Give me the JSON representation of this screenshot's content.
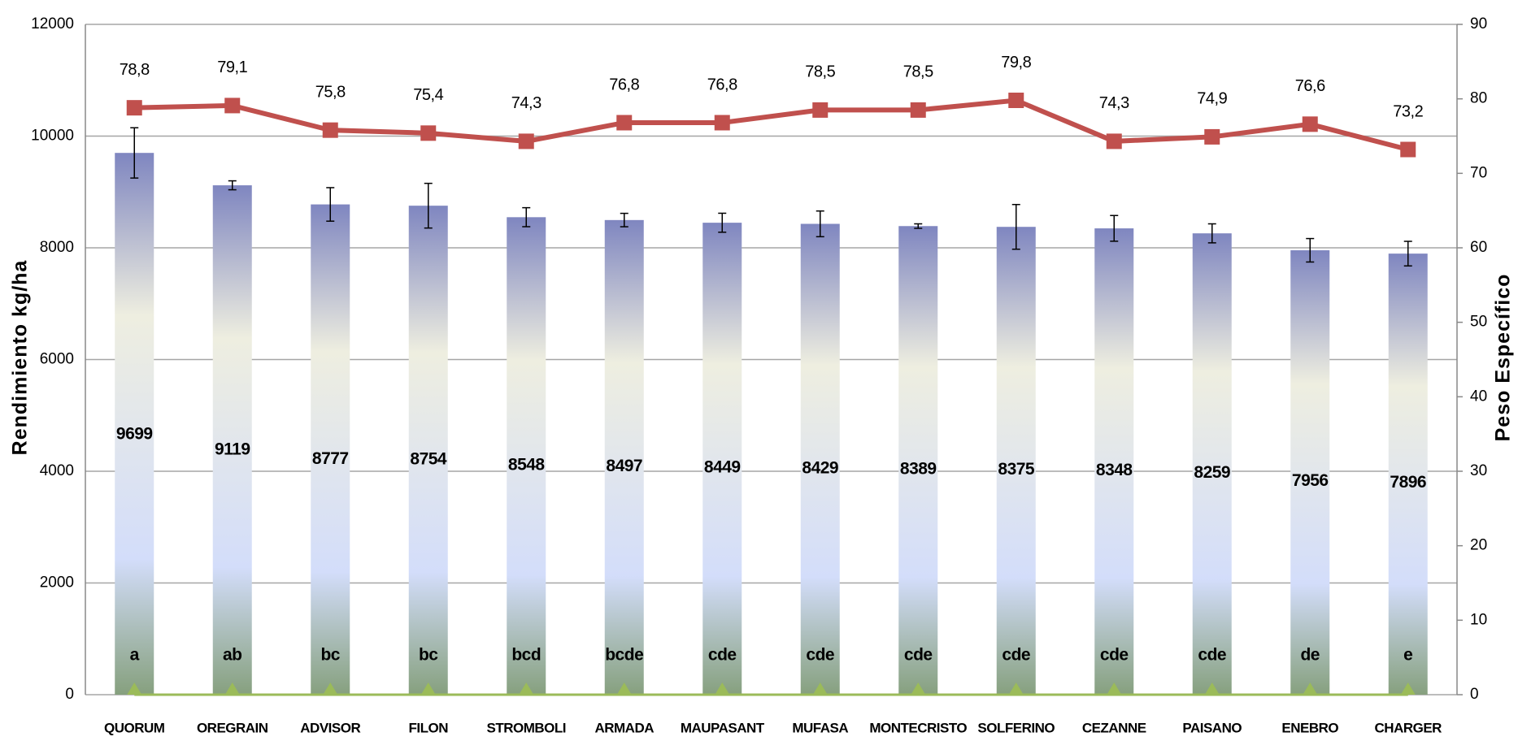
{
  "chart_data": {
    "type": "bar",
    "y_label": "Rendimiento  kg/ha",
    "y2_label": "Peso Específico",
    "categories": [
      "QUORUM",
      "OREGRAIN",
      "ADVISOR",
      "FILON",
      "STROMBOLI",
      "ARMADA",
      "MAUPASANT",
      "MUFASA",
      "MONTECRISTO",
      "SOLFERINO",
      "CEZANNE",
      "PAISANO",
      "ENEBRO",
      "CHARGER"
    ],
    "ylim": [
      0,
      12000
    ],
    "yticks": [
      0,
      2000,
      4000,
      6000,
      8000,
      10000,
      12000
    ],
    "y2lim": [
      0,
      90
    ],
    "y2ticks": [
      0,
      10,
      20,
      30,
      40,
      50,
      60,
      70,
      80,
      90
    ],
    "grid": true,
    "series": [
      {
        "type": "bar",
        "axis": "y",
        "gradient_colors": [
          "#7f86c0",
          "#eeeee0",
          "#d3ddfa",
          "#86a07e"
        ],
        "values": [
          9699,
          9119,
          8777,
          8754,
          8548,
          8497,
          8449,
          8429,
          8389,
          8375,
          8348,
          8259,
          7956,
          7896
        ],
        "errors": [
          450,
          80,
          300,
          400,
          170,
          120,
          170,
          230,
          40,
          400,
          230,
          170,
          210,
          220
        ],
        "group_labels": [
          "a",
          "ab",
          "bc",
          "bc",
          "bcd",
          "bcde",
          "cde",
          "cde",
          "cde",
          "cde",
          "cde",
          "cde",
          "de",
          "e"
        ]
      },
      {
        "type": "line",
        "axis": "y2",
        "color": "#c0504d",
        "marker": "square",
        "values": [
          78.8,
          79.1,
          75.8,
          75.4,
          74.3,
          76.8,
          76.8,
          78.5,
          78.5,
          79.8,
          74.3,
          74.9,
          76.6,
          73.2
        ],
        "value_labels": [
          "78,8",
          "79,1",
          "75,8",
          "75,4",
          "74,3",
          "76,8",
          "76,8",
          "78,5",
          "78,5",
          "79,8",
          "74,3",
          "74,9",
          "76,6",
          "73,2"
        ]
      },
      {
        "type": "line",
        "axis": "y",
        "color": "#9bbb59",
        "marker": "triangle",
        "values": [
          0,
          0,
          0,
          0,
          0,
          0,
          0,
          0,
          0,
          0,
          0,
          0,
          0,
          0
        ]
      }
    ]
  }
}
